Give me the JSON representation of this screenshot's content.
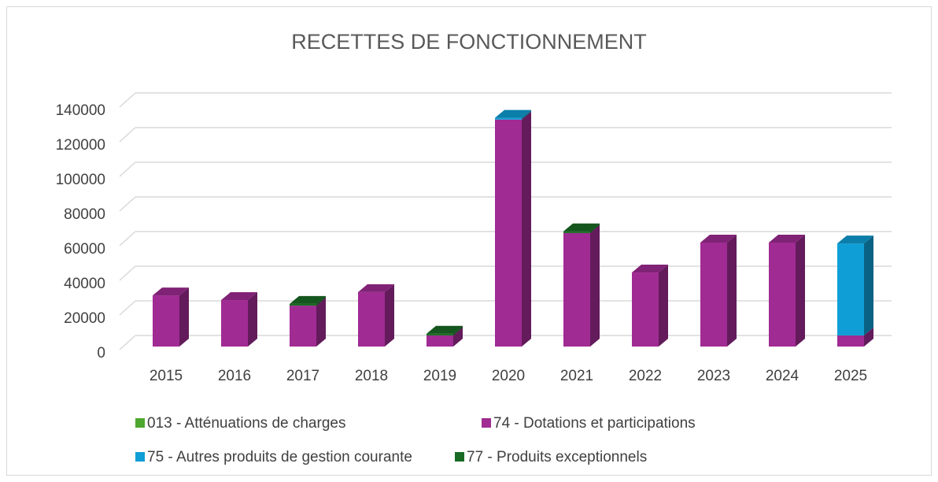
{
  "chart_data": {
    "type": "bar3d-stacked",
    "title": "RECETTES DE FONCTIONNEMENT",
    "categories": [
      "2015",
      "2016",
      "2017",
      "2018",
      "2019",
      "2020",
      "2021",
      "2022",
      "2023",
      "2024",
      "2025"
    ],
    "series": [
      {
        "name": "013 - Atténuations de charges",
        "color": "#4ea72e",
        "values": [
          null,
          null,
          null,
          null,
          null,
          null,
          null,
          null,
          null,
          null,
          null
        ]
      },
      {
        "name": "74 - Dotations et participations",
        "color": "#a02b93",
        "values": [
          29500,
          26800,
          23600,
          31400,
          6400,
          131000,
          65500,
          42700,
          60000,
          60000,
          6400
        ]
      },
      {
        "name": "75 - Autres produits de gestion courante",
        "color": "#0f9ed5",
        "values": [
          null,
          null,
          null,
          null,
          null,
          1000,
          null,
          null,
          null,
          null,
          53100
        ]
      },
      {
        "name": "77 - Produits exceptionnels",
        "color": "#196b24",
        "values": [
          null,
          null,
          1000,
          null,
          1000,
          null,
          1000,
          null,
          null,
          null,
          null
        ]
      }
    ],
    "ylim": [
      0,
      140000
    ],
    "yticks": [
      0,
      20000,
      40000,
      60000,
      80000,
      100000,
      120000,
      140000
    ],
    "grid": true,
    "legend": "bottom"
  }
}
